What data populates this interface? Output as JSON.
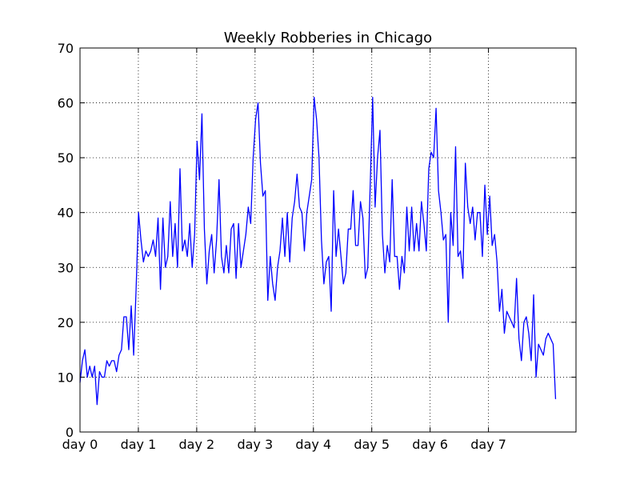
{
  "chart_data": {
    "type": "line",
    "title": "Weekly Robberies in Chicago",
    "xlabel": "",
    "ylabel": "",
    "ylim": [
      0,
      70
    ],
    "xlim": [
      0,
      8.5
    ],
    "grid": true,
    "series_color": "#0000ff",
    "x_ticks": [
      {
        "value": 0,
        "label": "day 0"
      },
      {
        "value": 1,
        "label": "day 1"
      },
      {
        "value": 2,
        "label": "day 2"
      },
      {
        "value": 3,
        "label": "day 3"
      },
      {
        "value": 4,
        "label": "day 4"
      },
      {
        "value": 5,
        "label": "day 5"
      },
      {
        "value": 6,
        "label": "day 6"
      },
      {
        "value": 7,
        "label": "day 7"
      }
    ],
    "y_ticks": [
      0,
      10,
      20,
      30,
      40,
      50,
      60,
      70
    ],
    "series": [
      {
        "values": [
          9,
          13,
          15,
          10,
          12,
          10,
          12,
          5,
          11,
          10,
          10,
          13,
          12,
          13,
          13,
          11,
          14,
          15,
          21,
          21,
          15,
          23,
          14,
          26,
          40,
          35,
          31,
          33,
          32,
          33,
          35,
          32,
          39,
          26,
          39,
          30,
          32,
          42,
          32,
          38,
          30,
          48,
          33,
          35,
          32,
          38,
          30,
          36,
          53,
          46,
          58,
          37,
          27,
          33,
          36,
          29,
          35,
          46,
          32,
          29,
          34,
          29,
          37,
          38,
          28,
          38,
          30,
          33,
          36,
          41,
          38,
          50,
          57,
          60,
          49,
          43,
          44,
          24,
          32,
          27,
          24,
          30,
          33,
          39,
          32,
          40,
          31,
          39,
          42,
          47,
          41,
          40,
          33,
          40,
          43,
          46,
          61,
          57,
          50,
          35,
          27,
          31,
          32,
          22,
          44,
          32,
          37,
          32,
          27,
          29,
          37,
          37,
          44,
          34,
          34,
          42,
          39,
          28,
          30,
          45,
          61,
          41,
          50,
          55,
          36,
          29,
          34,
          31,
          46,
          32,
          32,
          26,
          32,
          29,
          41,
          33,
          41,
          33,
          38,
          33,
          42,
          38,
          33,
          48,
          51,
          50,
          59,
          44,
          40,
          35,
          36,
          20,
          40,
          34,
          52,
          32,
          33,
          28,
          49,
          41,
          38,
          41,
          35,
          40,
          40,
          32,
          45,
          36,
          43,
          34,
          36,
          31,
          22,
          26,
          18,
          22,
          21,
          20,
          19,
          28,
          17,
          13,
          20,
          21,
          18,
          13,
          25,
          10,
          16,
          15,
          14,
          17,
          18,
          17,
          16,
          6
        ]
      }
    ]
  }
}
